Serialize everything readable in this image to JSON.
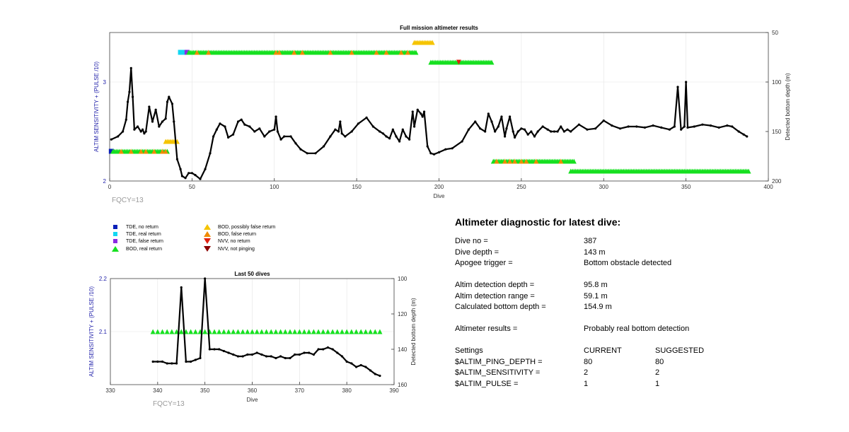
{
  "chart_data": [
    {
      "type": "line",
      "title": "Full mission altimeter results",
      "xlabel": "Dive",
      "ylabel": "ALTIM SENSITIVITY + (PULSE /10)",
      "y2label": "Detected bottom depth (m)",
      "xlim": [
        0,
        400
      ],
      "ylim": [
        2,
        3.5
      ],
      "y2lim": [
        200,
        50
      ],
      "y2_reversed": true,
      "xticks": [
        "0",
        "50",
        "100",
        "150",
        "200",
        "250",
        "300",
        "350",
        "400"
      ],
      "yticks": [
        "2",
        "3"
      ],
      "y2ticks": [
        "50",
        "100",
        "150",
        "200"
      ],
      "grid": true,
      "footnote": "FQCY=13",
      "bottom_depth_series": {
        "x": [
          1,
          5,
          8,
          10,
          11,
          12,
          13,
          14,
          15,
          17,
          19,
          20,
          21,
          22,
          24,
          26,
          28,
          30,
          32,
          34,
          35,
          36,
          38,
          39,
          41,
          43,
          44,
          46,
          48,
          50,
          52,
          55,
          58,
          61,
          63,
          65,
          67,
          70,
          72,
          75,
          78,
          80,
          82,
          85,
          88,
          91,
          94,
          97,
          100,
          101,
          102,
          104,
          106,
          110,
          113,
          116,
          120,
          125,
          130,
          134,
          137,
          139,
          140,
          141,
          143,
          147,
          151,
          156,
          160,
          164,
          166,
          168,
          170,
          172,
          174,
          176,
          178,
          180,
          182,
          184,
          185,
          187,
          189,
          190,
          191,
          193,
          195,
          197,
          200,
          204,
          208,
          214,
          218,
          222,
          225,
          228,
          230,
          232,
          234,
          236,
          238,
          240,
          241,
          243,
          245,
          246,
          248,
          250,
          252,
          254,
          256,
          258,
          260,
          263,
          266,
          268,
          270,
          272,
          274,
          276,
          278,
          280,
          285,
          290,
          295,
          300,
          305,
          310,
          315,
          320,
          325,
          330,
          335,
          340,
          343,
          345,
          347,
          349,
          350,
          351,
          355,
          360,
          365,
          370,
          375,
          378,
          382,
          385,
          387
        ],
        "y": [
          158,
          155,
          150,
          138,
          120,
          110,
          86,
          115,
          148,
          145,
          150,
          148,
          152,
          150,
          125,
          140,
          128,
          145,
          140,
          137,
          120,
          115,
          122,
          140,
          178,
          188,
          195,
          197,
          192,
          192,
          194,
          198,
          188,
          172,
          155,
          148,
          142,
          145,
          156,
          153,
          140,
          138,
          143,
          145,
          150,
          147,
          155,
          150,
          148,
          135,
          150,
          158,
          155,
          155,
          162,
          168,
          172,
          172,
          165,
          155,
          148,
          150,
          140,
          152,
          155,
          150,
          142,
          136,
          145,
          150,
          152,
          155,
          157,
          148,
          155,
          160,
          148,
          155,
          158,
          130,
          145,
          128,
          132,
          135,
          130,
          165,
          172,
          173,
          171,
          168,
          167,
          160,
          148,
          140,
          147,
          150,
          132,
          140,
          150,
          145,
          135,
          155,
          147,
          135,
          150,
          156,
          150,
          147,
          148,
          153,
          150,
          155,
          150,
          145,
          148,
          150,
          150,
          150,
          145,
          150,
          148,
          150,
          143,
          148,
          147,
          139,
          144,
          147,
          145,
          145,
          146,
          144,
          146,
          148,
          145,
          105,
          148,
          145,
          100,
          146,
          145,
          143,
          144,
          146,
          144,
          145,
          150,
          153,
          155
        ]
      },
      "detections": [
        {
          "series": "TDE, no return",
          "x": [
            1
          ]
        },
        {
          "series": "TDE, real return",
          "x": [
            43,
            44,
            45,
            46
          ]
        },
        {
          "series": "TDE, false return",
          "x": [
            47
          ]
        },
        {
          "series": "BOD, real return",
          "level": 3.3,
          "x_range": [
            48,
            186
          ]
        },
        {
          "series": "BOD, false return",
          "level": 3.3,
          "x": [
            53,
            60,
            101,
            103,
            112,
            117,
            134,
            147,
            162,
            168,
            177,
            181
          ]
        },
        {
          "series": "BOD, possibly false return",
          "level": 3.4,
          "x_range": [
            185,
            196
          ]
        },
        {
          "series": "BOD, real return",
          "level": 3.2,
          "x_range": [
            195,
            206
          ]
        },
        {
          "series": "BOD, real return",
          "level": 3.2,
          "x_range": [
            207,
            232
          ]
        },
        {
          "series": "NVV, no return",
          "level": 3.2,
          "x": [
            212
          ]
        },
        {
          "series": "BOD, real return",
          "level": 2.3,
          "x_range": [
            2,
            35
          ]
        },
        {
          "series": "BOD, false return",
          "level": 2.3,
          "x": [
            7,
            13,
            19,
            22,
            27,
            32,
            34
          ]
        },
        {
          "series": "BOD, possibly false return",
          "level": 2.4,
          "x_range": [
            34,
            41
          ]
        },
        {
          "series": "BOD, real return",
          "level": 2.2,
          "x_range": [
            233,
            282
          ]
        },
        {
          "series": "BOD, false return",
          "level": 2.2,
          "x": [
            235,
            240,
            243,
            246,
            250,
            253,
            259,
            274
          ]
        },
        {
          "series": "BOD, real return",
          "level": 2.1,
          "x_range": [
            280,
            388
          ]
        }
      ]
    },
    {
      "type": "line",
      "title": "Last 50 dives",
      "xlabel": "Dive",
      "ylabel": "ALTIM SENSITIVITY + (PULSE /10)",
      "y2label": "Detected bottom depth (m)",
      "xlim": [
        330,
        390
      ],
      "ylim": [
        2,
        2.2
      ],
      "y2lim": [
        160,
        100
      ],
      "y2_reversed": true,
      "xticks": [
        "330",
        "340",
        "350",
        "360",
        "370",
        "380",
        "390"
      ],
      "yticks": [
        "2.1",
        "2.2"
      ],
      "y2ticks": [
        "100",
        "120",
        "140",
        "160"
      ],
      "grid": true,
      "footnote": "FQCY=13",
      "bottom_depth_series": {
        "x": [
          339,
          340,
          341,
          342,
          343,
          344,
          345,
          346,
          347,
          348,
          349,
          350,
          351,
          352,
          353,
          354,
          355,
          356,
          357,
          358,
          359,
          360,
          361,
          362,
          363,
          364,
          365,
          366,
          367,
          368,
          369,
          370,
          371,
          372,
          373,
          374,
          375,
          376,
          377,
          378,
          379,
          380,
          381,
          382,
          383,
          384,
          385,
          386,
          387
        ],
        "y": [
          147,
          147,
          147,
          148,
          148,
          148,
          105,
          147,
          147,
          146,
          145,
          100,
          140,
          140,
          140,
          141,
          142,
          143,
          144,
          144,
          143,
          143,
          142,
          143,
          144,
          144,
          145,
          144,
          145,
          145,
          143,
          143,
          142,
          142,
          143,
          140,
          140,
          139,
          140,
          142,
          144,
          147,
          148,
          150,
          149,
          150,
          152,
          154,
          155
        ]
      },
      "detections": [
        {
          "series": "BOD, real return",
          "level": 2.1,
          "x_range": [
            339,
            387
          ]
        }
      ]
    }
  ],
  "legend": [
    {
      "label": "TDE, no return",
      "shape": "square",
      "color": "#0a1fb8"
    },
    {
      "label": "TDE, real return",
      "shape": "square",
      "color": "#12d7f2"
    },
    {
      "label": "TDE, false return",
      "shape": "square",
      "color": "#8a2be2"
    },
    {
      "label": "BOD, real return",
      "shape": "triangle-up",
      "color": "#16e020"
    },
    {
      "label": "BOD, possibly false return",
      "shape": "triangle-up",
      "color": "#f5c400"
    },
    {
      "label": "BOD, false return",
      "shape": "triangle-up",
      "color": "#f08a00"
    },
    {
      "label": "NVV, no return",
      "shape": "triangle-down",
      "color": "#e02010"
    },
    {
      "label": "NVV, not pinging",
      "shape": "triangle-down",
      "color": "#8b0000"
    }
  ],
  "colors": {
    "line": "#000000",
    "axis_label": "#2222aa",
    "footnote": "#9a9a9a",
    "grid": "#e4e4e4"
  },
  "diagnostic": {
    "title": "Altimeter diagnostic for latest dive:",
    "dive_no": {
      "label": "Dive no =",
      "value": "387"
    },
    "dive_depth": {
      "label": "Dive depth =",
      "value": "143 m"
    },
    "apogee": {
      "label": "Apogee trigger =",
      "value": "Bottom obstacle detected"
    },
    "altim_depth": {
      "label": "Altim detection depth =",
      "value": "95.8 m"
    },
    "altim_range": {
      "label": "Altim detection range =",
      "value": "59.1 m"
    },
    "bottom_depth": {
      "label": "Calculated bottom depth =",
      "value": "154.9 m"
    },
    "results": {
      "label": "Altimeter results =",
      "value": "Probably real bottom detection"
    },
    "settings": {
      "label": "Settings",
      "current": "CURRENT",
      "suggested": "SUGGESTED"
    },
    "ping_depth": {
      "label": "$ALTIM_PING_DEPTH =",
      "current": "80",
      "suggested": "80"
    },
    "sensitivity": {
      "label": "$ALTIM_SENSITIVITY =",
      "current": "2",
      "suggested": "2"
    },
    "pulse": {
      "label": "$ALTIM_PULSE =",
      "current": "1",
      "suggested": "1"
    }
  }
}
